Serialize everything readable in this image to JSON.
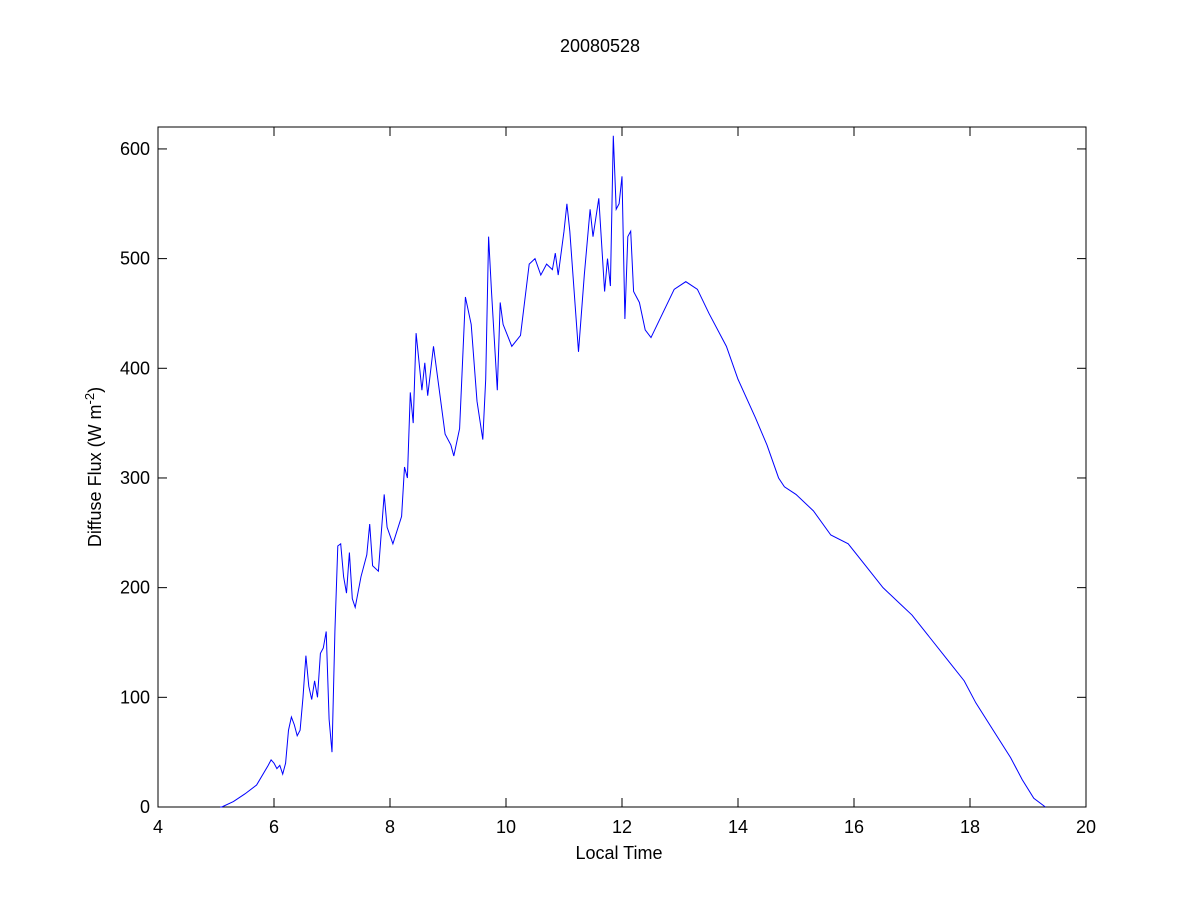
{
  "chart_data": {
    "type": "line",
    "title": "20080528",
    "xlabel": "Local Time",
    "ylabel": {
      "text": "Diffuse Flux (W m",
      "superscript": "-2",
      "suffix": ")"
    },
    "xlim": [
      4,
      20
    ],
    "xticks": [
      4,
      6,
      8,
      10,
      12,
      14,
      16,
      18,
      20
    ],
    "ylim": [
      0,
      620
    ],
    "yticks": [
      0,
      100,
      200,
      300,
      400,
      500,
      600
    ],
    "series": [
      {
        "color": "#0000ff",
        "x": [
          5.07,
          5.1,
          5.3,
          5.5,
          5.7,
          5.9,
          5.95,
          6.0,
          6.05,
          6.1,
          6.15,
          6.2,
          6.25,
          6.3,
          6.35,
          6.4,
          6.45,
          6.5,
          6.55,
          6.6,
          6.65,
          6.7,
          6.75,
          6.8,
          6.85,
          6.9,
          6.95,
          7.0,
          7.05,
          7.1,
          7.15,
          7.2,
          7.25,
          7.3,
          7.35,
          7.4,
          7.5,
          7.6,
          7.65,
          7.7,
          7.8,
          7.9,
          7.95,
          8.05,
          8.2,
          8.25,
          8.3,
          8.35,
          8.4,
          8.45,
          8.55,
          8.6,
          8.65,
          8.75,
          8.85,
          8.95,
          9.05,
          9.1,
          9.2,
          9.3,
          9.4,
          9.5,
          9.6,
          9.65,
          9.7,
          9.75,
          9.85,
          9.9,
          9.95,
          10.1,
          10.25,
          10.4,
          10.5,
          10.6,
          10.7,
          10.8,
          10.85,
          10.9,
          11.0,
          11.05,
          11.1,
          11.25,
          11.35,
          11.45,
          11.5,
          11.6,
          11.7,
          11.75,
          11.8,
          11.85,
          11.9,
          11.95,
          12.0,
          12.05,
          12.1,
          12.15,
          12.2,
          12.3,
          12.4,
          12.5,
          12.7,
          12.9,
          13.1,
          13.3,
          13.5,
          13.8,
          14.0,
          14.3,
          14.5,
          14.7,
          14.8,
          15.0,
          15.3,
          15.6,
          15.9,
          16.2,
          16.5,
          16.8,
          17.0,
          17.3,
          17.6,
          17.9,
          18.1,
          18.4,
          18.7,
          18.9,
          19.1,
          19.3
        ],
        "values": [
          0,
          0,
          5,
          12,
          20,
          38,
          43,
          40,
          35,
          38,
          30,
          40,
          70,
          82,
          75,
          65,
          70,
          100,
          138,
          110,
          98,
          115,
          100,
          140,
          145,
          160,
          80,
          50,
          160,
          238,
          240,
          210,
          195,
          232,
          190,
          182,
          210,
          230,
          258,
          220,
          215,
          285,
          255,
          240,
          265,
          310,
          300,
          378,
          350,
          432,
          380,
          405,
          375,
          420,
          380,
          340,
          330,
          320,
          345,
          465,
          440,
          370,
          335,
          390,
          520,
          470,
          380,
          460,
          440,
          420,
          430,
          495,
          500,
          485,
          495,
          490,
          505,
          485,
          525,
          550,
          525,
          415,
          485,
          545,
          520,
          555,
          470,
          500,
          475,
          612,
          545,
          550,
          575,
          445,
          520,
          525,
          470,
          460,
          435,
          428,
          450,
          472,
          479,
          472,
          450,
          420,
          390,
          355,
          330,
          300,
          292,
          285,
          270,
          248,
          240,
          220,
          200,
          185,
          175,
          155,
          135,
          115,
          95,
          70,
          45,
          25,
          8,
          0
        ]
      }
    ]
  }
}
